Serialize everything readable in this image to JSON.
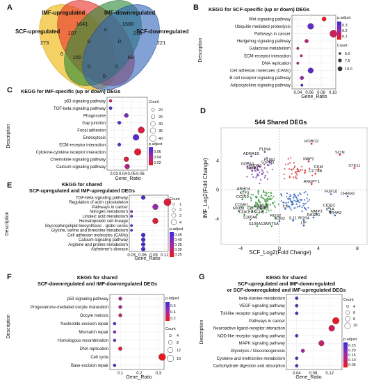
{
  "panels": {
    "A": {
      "label": "A",
      "sets": {
        "imf_up": "IMF-upregulated",
        "imf_down": "IMF-downregulated",
        "scf_up": "SCF-upregulated",
        "scf_down": "SCF-downregulated"
      },
      "regions": [
        {
          "value": "1641",
          "key": "imf_up_only"
        },
        {
          "value": "1588",
          "key": "imf_down_only"
        },
        {
          "value": "273",
          "key": "scf_up_only"
        },
        {
          "value": "221",
          "key": "scf_down_only"
        },
        {
          "value": "107",
          "key": "scf_up_imf_up"
        },
        {
          "value": "0",
          "key": "imf_up_imf_down"
        },
        {
          "value": "218",
          "key": "imf_down_scf_down"
        },
        {
          "value": "0",
          "key": "scf_up_scf_down_a"
        },
        {
          "value": "150",
          "key": "scf_up_imf_down"
        },
        {
          "value": "69",
          "key": "imf_up_scf_down"
        },
        {
          "value": "0",
          "key": "triple_a"
        },
        {
          "value": "0",
          "key": "triple_b"
        },
        {
          "value": "0",
          "key": "triple_c"
        },
        {
          "value": "0",
          "key": "triple_d"
        },
        {
          "value": "0",
          "key": "center"
        }
      ],
      "colors": {
        "imf_up": "#e8342c",
        "imf_down": "#2f8a3a",
        "scf_up": "#f2c232",
        "scf_down": "#2e63b8"
      }
    },
    "B": {
      "label": "B",
      "title": "KEGG for SCF-specific (up or down) DEGs",
      "xlabel": "Gene_Ratio",
      "ylabel": "Description",
      "padj_title": "p.adjust",
      "count_title": "Count",
      "padj_ticks": [
        "0.3",
        "0.2",
        "0.1"
      ],
      "count_ticks": [
        "5.0",
        "7.5",
        "10.0"
      ]
    },
    "C": {
      "label": "C",
      "title": "KEGG for IMF-specific (up or down) DEGs",
      "xlabel": "Gene_Ratio",
      "ylabel": "Description",
      "padj_title": "p.adjust",
      "count_title": "Count",
      "padj_ticks": [
        "0.06",
        "0.04",
        "0.02"
      ],
      "count_ticks": [
        "20",
        "25",
        "30",
        "35",
        "40"
      ]
    },
    "D": {
      "label": "D",
      "title": "544 Shared DEGs",
      "xlabel": "SCF_Log2(Fold Change)",
      "ylabel": "IMF_Log2(Fold Change)"
    },
    "E": {
      "label": "E",
      "title_line1": "KEGG for shared",
      "title_line2": "SCF-upregulated and IMF-upregulated DEGs",
      "xlabel": "Gene_Ratio",
      "ylabel": "Description",
      "padj_title": "p.adjust",
      "count_title": "Count",
      "padj_ticks": [
        "0.45",
        "0.40",
        "0.35",
        "0.30",
        "0.25"
      ],
      "count_ticks": [
        "1",
        "2",
        "3",
        "4"
      ]
    },
    "F": {
      "label": "F",
      "title_line1": "KEGG for shared",
      "title_line2": "SCF-downregulated and IMF-downregulated DEGs",
      "xlabel": "Gene_Ratio",
      "ylabel": "Description",
      "padj_title": "p.adjust",
      "count_title": "Count",
      "padj_ticks": [
        "0.6",
        "0.4",
        "0.2"
      ],
      "count_ticks": [
        "4",
        "8",
        "12",
        "16"
      ]
    },
    "G": {
      "label": "G",
      "title_line1": "KEGG for shared",
      "title_line2": "SCF-upregulated and IMF-downregulated",
      "title_line3": "or SCF-downregulated and IMF-upregulated DEGs",
      "xlabel": "Gene_Ratio",
      "ylabel": "Description",
      "padj_title": "p.adjust",
      "count_title": "Count",
      "padj_ticks": [
        "0.25",
        "0.20",
        "0.15",
        "0.10",
        "0.05"
      ],
      "count_ticks": [
        "4",
        "6",
        "8",
        "10"
      ]
    }
  },
  "chart_data": [
    {
      "panel": "B",
      "type": "scatter",
      "title": "KEGG for SCF-specific (up or down) DEGs",
      "xlabel": "Gene_Ratio",
      "ylabel": "Description",
      "xlim": [
        0.03,
        0.105
      ],
      "xticks": [
        0.04,
        0.06,
        0.08,
        0.1
      ],
      "xtick_labels": [
        "0.04",
        "0.06",
        "0.08",
        "0.10"
      ],
      "padj_range": [
        0.02,
        0.35
      ],
      "count_range": [
        3,
        11
      ],
      "categories": [
        "Wnt signaling pathway",
        "Ubiquitin mediated proteolysis",
        "Pathways in cancer",
        "Hedgehog signaling pathway",
        "Galactose metabolism",
        "ECM-receptor interaction",
        "DNA replication",
        "Cell adhesion molecules (CAMs)",
        "B cell receptor signaling pathway",
        "Adipocytokine signaling pathway"
      ],
      "x": [
        0.085,
        0.062,
        0.101,
        0.055,
        0.04,
        0.046,
        0.04,
        0.062,
        0.047,
        0.047
      ],
      "padj": [
        0.02,
        0.28,
        0.1,
        0.12,
        0.1,
        0.12,
        0.15,
        0.3,
        0.2,
        0.33
      ],
      "count": [
        6,
        9,
        11,
        5,
        3,
        3,
        3,
        8,
        5,
        3
      ]
    },
    {
      "panel": "C",
      "type": "scatter",
      "title": "KEGG for IMF-specific (up or down) DEGs",
      "xlabel": "Gene_Ratio",
      "ylabel": "Description",
      "xlim": [
        0.022,
        0.068
      ],
      "xticks": [
        0.03,
        0.04,
        0.05,
        0.06
      ],
      "xtick_labels": [
        "0.03",
        "0.04",
        "0.05",
        "0.06"
      ],
      "padj_range": [
        0.005,
        0.07
      ],
      "count_range": [
        15,
        45
      ],
      "categories": [
        "p53 signaling pathway",
        "TGF-beta signaling pathway",
        "Phagosome",
        "Gap junction",
        "Focal adhesion",
        "Endocytosis",
        "ECM-receptor interaction",
        "Cytokine-cytokine receptor interaction",
        "Chemokine signaling pathway",
        "Calcium signaling pathway"
      ],
      "x": [
        0.026,
        0.026,
        0.044,
        0.036,
        0.061,
        0.055,
        0.036,
        0.057,
        0.044,
        0.045
      ],
      "padj": [
        0.02,
        0.06,
        0.05,
        0.06,
        0.015,
        0.06,
        0.06,
        0.01,
        0.015,
        0.03
      ],
      "count": [
        17,
        19,
        26,
        21,
        40,
        38,
        20,
        42,
        30,
        31
      ]
    },
    {
      "panel": "D",
      "type": "scatter",
      "title": "544 Shared DEGs",
      "xlabel": "SCF_Log2(Fold Change)",
      "ylabel": "IMF_Log2(Fold Change)",
      "xlim": [
        -6,
        9
      ],
      "ylim": [
        -7.5,
        8.5
      ],
      "xticks": [
        -4,
        0,
        4,
        8
      ],
      "yticks": [
        -4,
        0,
        4
      ],
      "labeled_points": [
        {
          "gene": "ROBO2",
          "x": 3.3,
          "y": 6.3
        },
        {
          "gene": "SCIN",
          "x": 6.2,
          "y": 4.8
        },
        {
          "gene": "PLIN4",
          "x": -1.5,
          "y": 5.2
        },
        {
          "gene": "ADRA1B",
          "x": -2.9,
          "y": 4.6
        },
        {
          "gene": "PLIN1",
          "x": -1.0,
          "y": 3.8
        },
        {
          "gene": "S1PR3",
          "x": -1.2,
          "y": 3.4
        },
        {
          "gene": "MAP2",
          "x": 3.0,
          "y": 3.9
        },
        {
          "gene": "STK11",
          "x": 7.7,
          "y": 3.0
        },
        {
          "gene": "GDF10",
          "x": -3.3,
          "y": 3.2
        },
        {
          "gene": "FNDC1",
          "x": -2.5,
          "y": 3.0
        },
        {
          "gene": "TIMP3",
          "x": -2.8,
          "y": 2.6
        },
        {
          "gene": "CKM",
          "x": 4.0,
          "y": 2.8
        },
        {
          "gene": "CCT6B",
          "x": 3.7,
          "y": 2.2
        },
        {
          "gene": "ANGPT1",
          "x": 3.3,
          "y": 0.8
        },
        {
          "gene": "ABHD4",
          "x": -3.7,
          "y": -0.2
        },
        {
          "gene": "KLF2",
          "x": -3.6,
          "y": -0.8
        },
        {
          "gene": "CCL19",
          "x": -3.8,
          "y": -1.3
        },
        {
          "gene": "FGF10",
          "x": 5.3,
          "y": -0.6
        },
        {
          "gene": "CHRM2",
          "x": 7.0,
          "y": -0.9
        },
        {
          "gene": "CCNB1",
          "x": -3.9,
          "y": -2.4
        },
        {
          "gene": "FOXM1",
          "x": -1.9,
          "y": -2.6
        },
        {
          "gene": "MXD3",
          "x": -4.2,
          "y": -2.9
        },
        {
          "gene": "E2F1",
          "x": -2.8,
          "y": -2.9
        },
        {
          "gene": "BNIP3",
          "x": -1.7,
          "y": -2.9
        },
        {
          "gene": "IL6",
          "x": 0.6,
          "y": -2.6
        },
        {
          "gene": "CIDEC",
          "x": 5.1,
          "y": -2.5
        },
        {
          "gene": "IL1A",
          "x": 5.2,
          "y": -3.0
        },
        {
          "gene": "NR4A3",
          "x": 5.7,
          "y": -3.5
        },
        {
          "gene": "CDK1",
          "x": -3.6,
          "y": -3.4
        },
        {
          "gene": "ASF1B",
          "x": -2.3,
          "y": -3.4
        },
        {
          "gene": "MMP3",
          "x": 3.8,
          "y": -3.3
        },
        {
          "gene": "RASD1",
          "x": 3.5,
          "y": -3.8
        },
        {
          "gene": "RGS2",
          "x": -0.4,
          "y": -3.9
        },
        {
          "gene": "S100A8",
          "x": -3.0,
          "y": -4.1
        },
        {
          "gene": "TOM2",
          "x": 0.0,
          "y": -4.3
        },
        {
          "gene": "IL11",
          "x": 1.4,
          "y": -4.2
        },
        {
          "gene": "ROS4",
          "x": 2.5,
          "y": -4.2
        },
        {
          "gene": "LIF",
          "x": 2.5,
          "y": -4.9
        },
        {
          "gene": "S100A12",
          "x": -2.3,
          "y": -5.0
        },
        {
          "gene": "WNT5A",
          "x": -0.8,
          "y": -5.0
        }
      ]
    },
    {
      "panel": "E",
      "type": "scatter",
      "title": "KEGG for shared SCF-upregulated and IMF-upregulated DEGs",
      "xlabel": "Gene_Ratio",
      "ylabel": "Description",
      "xlim": [
        0.024,
        0.13
      ],
      "xticks": [
        0.03,
        0.06,
        0.09,
        0.12
      ],
      "xtick_labels": [
        "0.03",
        "0.06",
        "0.09",
        "0.12"
      ],
      "padj_range": [
        0.22,
        0.47
      ],
      "count_range": [
        1,
        4
      ],
      "categories": [
        "TGF-beta signaling pathway",
        "Regulation of actin cytoskeleton",
        "Pathways in cancer",
        "Nitrogen metabolism",
        "Linoleic acid metabolism",
        "Hematopoietic cell lineage",
        "Glycosphingolipid biosynthesis - globo series",
        "Glycine, serine and threonine metabolism",
        "Cell adhesion molecules (CAMs)",
        "Calcium signaling pathway",
        "Arginine and proline metabolism",
        "Alzheimer's disease"
      ],
      "x": [
        0.062,
        0.128,
        0.095,
        0.03,
        0.03,
        0.095,
        0.03,
        0.03,
        0.062,
        0.062,
        0.062,
        0.062
      ],
      "padj": [
        0.45,
        0.25,
        0.36,
        0.38,
        0.42,
        0.25,
        0.46,
        0.41,
        0.45,
        0.45,
        0.45,
        0.45
      ],
      "count": [
        2,
        4,
        3,
        1,
        1,
        3,
        1,
        1,
        2,
        2,
        2,
        2
      ]
    },
    {
      "panel": "F",
      "type": "scatter",
      "title": "KEGG for shared SCF-downregulated and IMF-downregulated DEGs",
      "xlabel": "Gene_Ratio",
      "ylabel": "Description",
      "xlim": [
        0.045,
        0.33
      ],
      "xticks": [
        0.1,
        0.2,
        0.3
      ],
      "xtick_labels": [
        "0.1",
        "0.2",
        "0.3"
      ],
      "padj_range": [
        0.0,
        0.7
      ],
      "count_range": [
        2,
        17
      ],
      "categories": [
        "p53 signaling pathway",
        "Progesterone-mediated oocyte maturation",
        "Oocyte meiosis",
        "Nucleotide excision repair",
        "Mismatch repair",
        "Homologous recombination",
        "DNA replication",
        "Cell cycle",
        "Base excision repair"
      ],
      "x": [
        0.1,
        0.1,
        0.1,
        0.07,
        0.07,
        0.07,
        0.1,
        0.32,
        0.07
      ],
      "padj": [
        0.3,
        0.3,
        0.2,
        0.68,
        0.5,
        0.55,
        0.05,
        0.01,
        0.65
      ],
      "count": [
        5,
        5,
        5,
        3,
        3,
        3,
        6,
        16,
        3
      ]
    },
    {
      "panel": "G",
      "type": "scatter",
      "title": "KEGG for shared SCF-upregulated and IMF-downregulated or SCF-downregulated and IMF-upregulated DEGs",
      "xlabel": "Gene_Ratio",
      "ylabel": "Description",
      "xlim": [
        0.015,
        0.15
      ],
      "xticks": [
        0.04,
        0.08,
        0.12
      ],
      "xtick_labels": [
        "0.04",
        "0.08",
        "0.12"
      ],
      "padj_range": [
        0.03,
        0.27
      ],
      "count_range": [
        3,
        11
      ],
      "categories": [
        "beta-Alanine metabolism",
        "VEGF signaling pathway",
        "Toll-like receptor signaling pathway",
        "Pathways in cancer",
        "Neuroactive ligand-receptor interaction",
        "NOD-like receptor signaling pathway",
        "MAPK signaling pathway",
        "Glycolysis / Gluconeogenesis",
        "Cysteine and methionine metabolism",
        "Carbohydrate digestion and absorption"
      ],
      "x": [
        0.04,
        0.04,
        0.04,
        0.135,
        0.125,
        0.04,
        0.1,
        0.055,
        0.04,
        0.04
      ],
      "padj": [
        0.24,
        0.24,
        0.24,
        0.04,
        0.08,
        0.24,
        0.1,
        0.15,
        0.24,
        0.24
      ],
      "count": [
        4,
        4,
        4,
        10,
        9,
        4,
        8,
        5,
        4,
        4
      ]
    }
  ]
}
